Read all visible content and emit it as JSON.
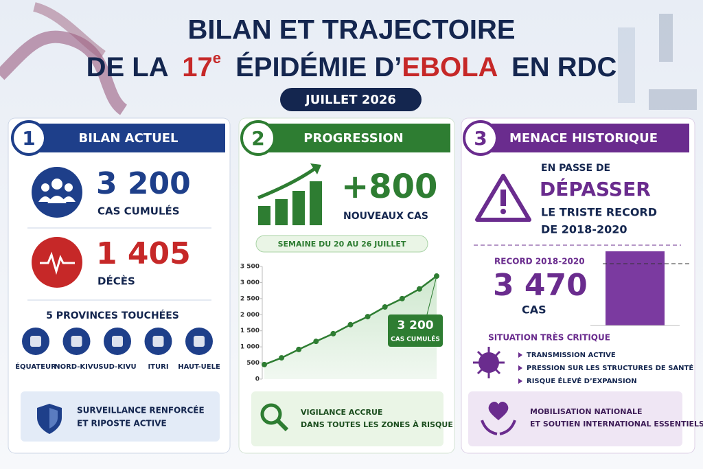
{
  "header": {
    "title_line1": "BILAN ET TRAJECTOIRE",
    "title_line2": [
      "DE LA",
      "17",
      "e",
      "ÉPIDÉMIE D’",
      "EBOLA",
      "EN RDC"
    ],
    "date": "JUILLET 2026"
  },
  "panel1": {
    "number": "1",
    "title": "BILAN ACTUEL",
    "cases": "3 200",
    "cases_label": "CAS CUMULÉS",
    "deaths": "1 405",
    "deaths_label": "DÉCÈS",
    "provinces_title": "5 PROVINCES TOUCHÉES",
    "provinces": [
      "ÉQUATEUR",
      "NORD-KIVU",
      "SUD-KIVU",
      "ITURI",
      "HAUT-UELE"
    ],
    "note": [
      "SURVEILLANCE RENFORCÉE",
      "ET RIPOSTE ACTIVE"
    ]
  },
  "panel2": {
    "number": "2",
    "title": "PROGRESSION",
    "new_cases": "+800",
    "new_cases_label": "NOUVEAUX CAS",
    "week": "SEMAINE DU 20 AU 26 JUILLET",
    "chart": {
      "type": "line",
      "values": [
        450,
        660,
        920,
        1170,
        1410,
        1690,
        1940,
        2240,
        2500,
        2800,
        3200
      ],
      "color": "#2e7d32",
      "ylim": [
        0,
        3500
      ],
      "yticks": [
        0,
        {
          "value": 500,
          "label": "500"
        },
        {
          "value": 1000,
          "label": "1 000"
        },
        {
          "value": 1500,
          "label": "1 500"
        },
        {
          "value": 2000,
          "label": "2 000"
        },
        {
          "value": 2500,
          "label": "2 500"
        },
        {
          "value": 3000,
          "label": "3 000"
        },
        {
          "value": 3500,
          "label": "3 500"
        }
      ],
      "annotation": [
        "3 200",
        "CAS CUMULÉS"
      ]
    },
    "note": [
      "VIGILANCE ACCRUE",
      "DANS TOUTES LES ZONES À RISQUE"
    ]
  },
  "panel3": {
    "number": "3",
    "title": "MENACE HISTORIQUE",
    "intro": "EN PASSE DE",
    "verb": "DÉPASSER",
    "rest": [
      "LE TRISTE RECORD",
      "DE 2018-2020"
    ],
    "record_label": "RECORD 2018-2020",
    "record": "3 470",
    "record_unit": "CAS",
    "critical": "SITUATION TRÈS CRITIQUE",
    "bullets": [
      "TRANSMISSION ACTIVE",
      "PRESSION SUR LES STRUCTURES DE SANTÉ",
      "RISQUE ÉLEVÉ D’EXPANSION"
    ],
    "note": [
      "MOBILISATION NATIONALE",
      "ET SOUTIEN INTERNATIONAL ESSENTIELS"
    ]
  }
}
